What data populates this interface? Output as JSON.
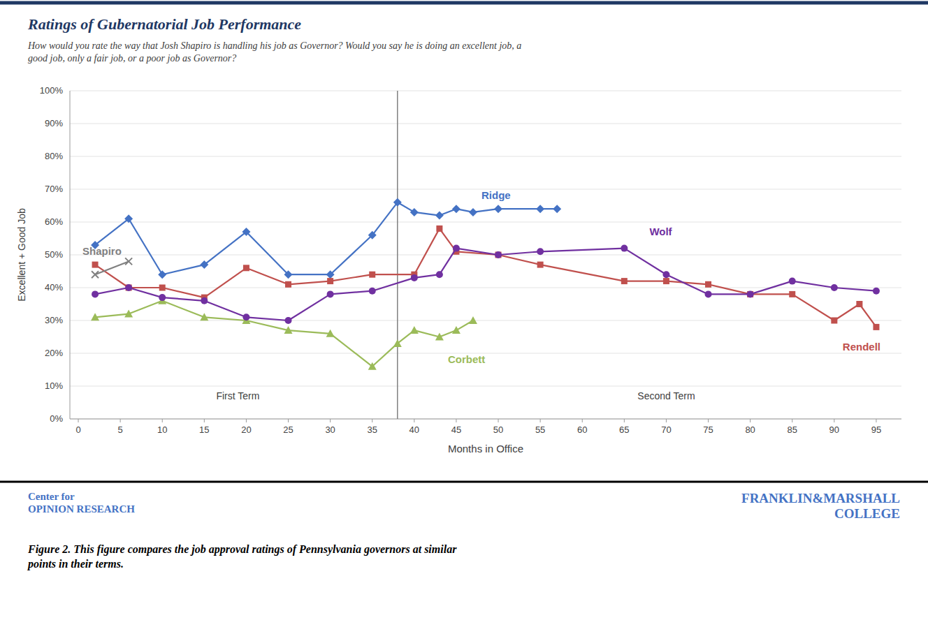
{
  "chart_data": {
    "type": "line",
    "title": "Ratings of Gubernatorial Job Performance",
    "subtitle": "How would you rate the way that Josh Shapiro is handling his job as Governor? Would you say he is doing an excellent job, a\ngood job, only a fair job, or a poor job as Governor?",
    "x_label": "Months in Office",
    "y_label": "Excellent + Good Job",
    "caption": "Figure 2. This figure compares the job approval ratings of Pennsylvania governors at similar\npoints in their terms.",
    "footer_texts": [
      "Center for\nOPINION RESEARCH",
      "FRANKLIN&MARSHALL\nCOLLEGE"
    ],
    "series": [
      {
        "name": "Ridge",
        "color": "#4472C4",
        "marker": "diamond",
        "x": [
          2,
          6,
          10,
          15,
          20,
          25,
          30,
          35,
          38,
          40,
          43,
          45,
          47,
          50,
          55,
          57
        ],
        "values": [
          0.53,
          0.61,
          0.44,
          0.47,
          0.57,
          0.44,
          0.44,
          0.56,
          0.66,
          0.63,
          0.62,
          0.64,
          0.63,
          0.64,
          0.64,
          0.64
        ],
        "label_x": 48,
        "label_y": 0.68
      },
      {
        "name": "Rendell",
        "color": "#C0504D",
        "marker": "square",
        "x": [
          2,
          6,
          10,
          15,
          20,
          25,
          30,
          35,
          40,
          43,
          45,
          50,
          55,
          65,
          70,
          75,
          80,
          85,
          90,
          93,
          95
        ],
        "values": [
          0.47,
          0.4,
          0.4,
          0.37,
          0.46,
          0.41,
          0.42,
          0.44,
          0.44,
          0.58,
          0.51,
          0.5,
          0.47,
          0.42,
          0.42,
          0.41,
          0.38,
          0.38,
          0.3,
          0.35,
          0.28
        ],
        "label_x": 91,
        "label_y": 0.22
      },
      {
        "name": "Corbett",
        "color": "#9BBB59",
        "marker": "triangle",
        "x": [
          2,
          6,
          10,
          15,
          20,
          25,
          30,
          35,
          38,
          40,
          43,
          45,
          47
        ],
        "values": [
          0.31,
          0.32,
          0.36,
          0.31,
          0.3,
          0.27,
          0.26,
          0.16,
          0.23,
          0.27,
          0.25,
          0.27,
          0.3
        ],
        "label_x": 44,
        "label_y": 0.18
      },
      {
        "name": "Wolf",
        "color": "#7030A0",
        "marker": "circle",
        "x": [
          2,
          6,
          10,
          15,
          20,
          25,
          30,
          35,
          40,
          43,
          45,
          50,
          55,
          65,
          70,
          75,
          80,
          85,
          90,
          95
        ],
        "values": [
          0.38,
          0.4,
          0.37,
          0.36,
          0.31,
          0.3,
          0.38,
          0.39,
          0.43,
          0.44,
          0.52,
          0.5,
          0.51,
          0.52,
          0.44,
          0.38,
          0.38,
          0.42,
          0.4,
          0.39
        ],
        "label_x": 68,
        "label_y": 0.57
      },
      {
        "name": "Shapiro",
        "color": "#808080",
        "marker": "x",
        "x": [
          2,
          6
        ],
        "values": [
          0.44,
          0.48
        ],
        "label_x": 0.5,
        "label_y": 0.51
      }
    ],
    "vlines": [
      38
    ],
    "annotations": [
      {
        "text": "First Term",
        "x": 19,
        "y": 0.07
      },
      {
        "text": "Second Term",
        "x": 70,
        "y": 0.07
      }
    ],
    "xlim": [
      -1,
      98
    ],
    "xticks": [
      0,
      5,
      10,
      15,
      20,
      25,
      30,
      35,
      40,
      45,
      50,
      55,
      60,
      65,
      70,
      75,
      80,
      85,
      90,
      95
    ],
    "ylim": [
      0,
      1.0
    ],
    "yticks": [
      {
        "value": 0,
        "label": "0%"
      },
      {
        "value": 0.1,
        "label": "10%"
      },
      {
        "value": 0.2,
        "label": "20%"
      },
      {
        "value": 0.3,
        "label": "30%"
      },
      {
        "value": 0.4,
        "label": "40%"
      },
      {
        "value": 0.5,
        "label": "50%"
      },
      {
        "value": 0.6,
        "label": "60%"
      },
      {
        "value": 0.7,
        "label": "70%"
      },
      {
        "value": 0.8,
        "label": "80%"
      },
      {
        "value": 0.9,
        "label": "90%"
      },
      {
        "value": 1.0,
        "label": "100%"
      }
    ],
    "grid": true
  }
}
